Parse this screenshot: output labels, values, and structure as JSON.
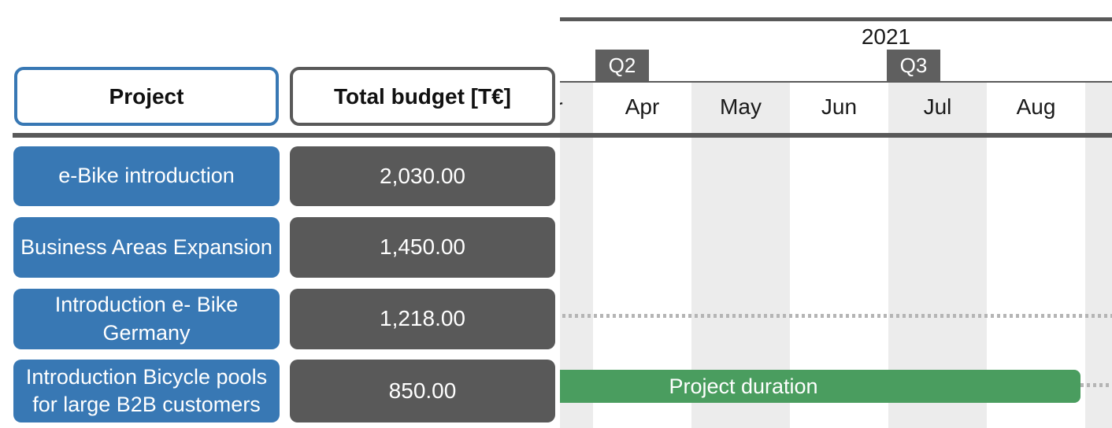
{
  "table": {
    "headers": [
      {
        "label": "Project"
      },
      {
        "label": "Total budget [T€]"
      }
    ],
    "rows": [
      {
        "project": "e-Bike introduction",
        "budget": "2,030.00"
      },
      {
        "project": "Business Areas Expansion",
        "budget": "1,450.00"
      },
      {
        "project": "Introduction e- Bike Germany",
        "budget": "1,218.00"
      },
      {
        "project": "Introduction Bicycle pools for large B2B customers",
        "budget": "850.00"
      }
    ]
  },
  "timeline": {
    "year": "2021",
    "quarters": [
      {
        "label": "Q2"
      },
      {
        "label": "Q3"
      }
    ],
    "months": [
      "Mar",
      "Apr",
      "May",
      "Jun",
      "Jul",
      "Aug"
    ],
    "bar_label": "Project duration"
  },
  "colors": {
    "project_blue": "#3878b4",
    "dark_gray": "#595959",
    "badge_gray": "#5f5f5f",
    "bar_green": "#4a9d5f",
    "stripe_gray": "#ececec",
    "dotted_gray": "#b5b5b5"
  },
  "chart_data": {
    "type": "gantt",
    "title": "",
    "x_axis": {
      "year": "2021",
      "visible_months": [
        "Mar",
        "Apr",
        "May",
        "Jun",
        "Jul",
        "Aug"
      ],
      "quarter_markers": [
        "Q2",
        "Q3"
      ],
      "grid": "alternating month stripes"
    },
    "rows": [
      {
        "project": "e-Bike introduction",
        "total_budget_TEUR": 2030.0,
        "visible_marks": "none"
      },
      {
        "project": "Business Areas Expansion",
        "total_budget_TEUR": 1450.0,
        "visible_marks": "none"
      },
      {
        "project": "Introduction e- Bike Germany",
        "total_budget_TEUR": 1218.0,
        "visible_marks": "dotted line across full visible range"
      },
      {
        "project": "Introduction Bicycle pools for large B2B customers",
        "total_budget_TEUR": 850.0,
        "visible_marks": "bar",
        "bar_label": "Project duration",
        "bar_start": "before Mar 2021 (clipped at left edge)",
        "bar_end": "end of Aug 2021",
        "dotted_tail": "from end of Aug to right edge"
      }
    ],
    "legend_position": "none"
  }
}
